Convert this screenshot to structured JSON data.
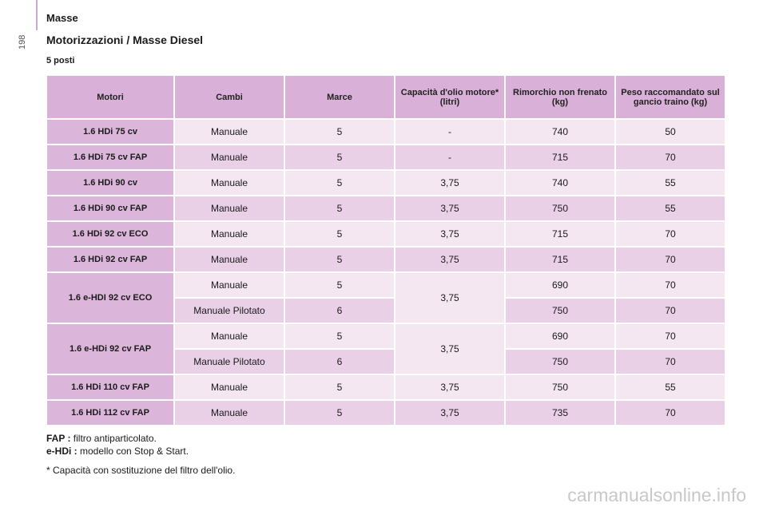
{
  "page": {
    "number": "198",
    "section": "Masse"
  },
  "title": "Motorizzazioni / Masse Diesel",
  "subtitle": "5 posti",
  "table": {
    "headers": [
      "Motori",
      "Cambi",
      "Marce",
      "Capacità d'olio motore* (litri)",
      "Rimorchio non frenato (kg)",
      "Peso raccomandato sul gancio traino (kg)"
    ],
    "r1": {
      "engine": "1.6 HDi 75 cv",
      "gear": "Manuale",
      "speeds": "5",
      "oil": "-",
      "trailer": "740",
      "hitch": "50"
    },
    "r2": {
      "engine": "1.6 HDi 75 cv FAP",
      "gear": "Manuale",
      "speeds": "5",
      "oil": "-",
      "trailer": "715",
      "hitch": "70"
    },
    "r3": {
      "engine": "1.6 HDi 90 cv",
      "gear": "Manuale",
      "speeds": "5",
      "oil": "3,75",
      "trailer": "740",
      "hitch": "55"
    },
    "r4": {
      "engine": "1.6 HDi 90 cv FAP",
      "gear": "Manuale",
      "speeds": "5",
      "oil": "3,75",
      "trailer": "750",
      "hitch": "55"
    },
    "r5": {
      "engine": "1.6 HDi 92 cv ECO",
      "gear": "Manuale",
      "speeds": "5",
      "oil": "3,75",
      "trailer": "715",
      "hitch": "70"
    },
    "r6": {
      "engine": "1.6 HDi 92 cv FAP",
      "gear": "Manuale",
      "speeds": "5",
      "oil": "3,75",
      "trailer": "715",
      "hitch": "70"
    },
    "g1": {
      "engine": "1.6 e-HDI 92 cv ECO",
      "oil": "3,75",
      "a": {
        "gear": "Manuale",
        "speeds": "5",
        "trailer": "690",
        "hitch": "70"
      },
      "b": {
        "gear": "Manuale Pilotato",
        "speeds": "6",
        "trailer": "750",
        "hitch": "70"
      }
    },
    "g2": {
      "engine": "1.6 e-HDi 92 cv FAP",
      "oil": "3,75",
      "a": {
        "gear": "Manuale",
        "speeds": "5",
        "trailer": "690",
        "hitch": "70"
      },
      "b": {
        "gear": "Manuale Pilotato",
        "speeds": "6",
        "trailer": "750",
        "hitch": "70"
      }
    },
    "r7": {
      "engine": "1.6 HDi 110 cv FAP",
      "gear": "Manuale",
      "speeds": "5",
      "oil": "3,75",
      "trailer": "750",
      "hitch": "55"
    },
    "r8": {
      "engine": "1.6 HDi 112 cv FAP",
      "gear": "Manuale",
      "speeds": "5",
      "oil": "3,75",
      "trailer": "735",
      "hitch": "70"
    }
  },
  "footnotes": {
    "fap_term": "FAP :",
    "fap_text": "filtro antiparticolato.",
    "ehdi_term": "e-HDi :",
    "ehdi_text": "modello con Stop & Start.",
    "oil_note": "* Capacità con sostituzione del filtro dell'olio."
  },
  "watermark": "carmanualsonline.info"
}
